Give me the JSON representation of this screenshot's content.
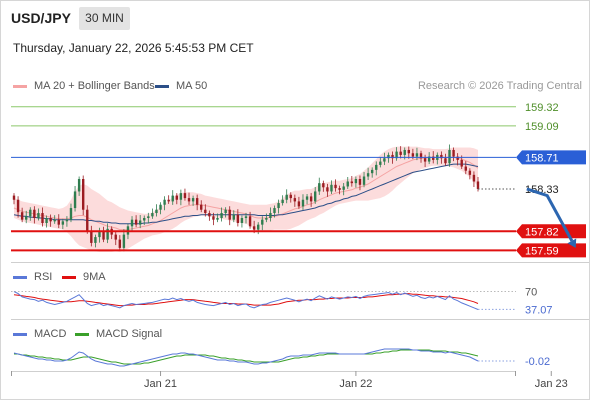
{
  "header": {
    "symbol": "USD/JPY",
    "timeframe": "30 MIN",
    "datetime": "Thursday, January 22, 2026 5:45:53 PM CET",
    "copyright": "Research © 2026 Trading Central"
  },
  "colors": {
    "bollinger": "#f5a3a3",
    "ma50": "#2c4f88",
    "support": "#e01010",
    "resistance": "#2a5fd6",
    "target": "#8cc86a",
    "arrow": "#2c66b0",
    "candle_up": "#2f7d4f",
    "candle_down": "#9c1c22",
    "rsi": "#5a78d8",
    "rsi_ma": "#e01010",
    "macd": "#5a78d8",
    "macd_signal": "#3aa02a"
  },
  "chart_data": [
    {
      "type": "candlestick",
      "title": "",
      "legend": [
        {
          "name": "MA 20 + Bollinger Bands",
          "color": "#f5a3a3"
        },
        {
          "name": "MA 50",
          "color": "#2c4f88"
        }
      ],
      "ylim": [
        157.45,
        159.45
      ],
      "x_ticks": [
        {
          "label": "Jan 21",
          "index": 36
        },
        {
          "label": "Jan 22",
          "index": 84
        },
        {
          "label": "Jan 23",
          "index": 132
        }
      ],
      "levels": [
        {
          "value": 159.32,
          "label": "159.32",
          "kind": "target"
        },
        {
          "value": 159.09,
          "label": "159.09",
          "kind": "target"
        },
        {
          "value": 158.71,
          "label": "158.71",
          "kind": "resistance"
        },
        {
          "value": 158.33,
          "label": "158.33",
          "kind": "last"
        },
        {
          "value": 157.82,
          "label": "157.82",
          "kind": "support"
        },
        {
          "value": 157.59,
          "label": "157.59",
          "kind": "support"
        }
      ],
      "forecast_path": [
        {
          "index": 126,
          "value": 158.33
        },
        {
          "index": 131,
          "value": 158.25
        },
        {
          "index": 138,
          "value": 157.62
        }
      ],
      "close": [
        158.2,
        158.05,
        157.96,
        158.0,
        158.08,
        157.98,
        158.04,
        157.92,
        157.98,
        157.94,
        157.96,
        157.9,
        157.94,
        157.96,
        158.1,
        158.3,
        158.45,
        158.08,
        157.82,
        157.68,
        157.75,
        157.82,
        157.72,
        157.85,
        157.78,
        157.72,
        157.62,
        157.78,
        157.88,
        157.96,
        157.9,
        157.95,
        157.98,
        158.0,
        158.04,
        158.08,
        158.14,
        158.2,
        158.18,
        158.25,
        158.2,
        158.28,
        158.22,
        158.18,
        158.22,
        158.14,
        158.08,
        158.04,
        158.0,
        157.96,
        157.98,
        158.04,
        158.08,
        157.96,
        158.02,
        157.92,
        157.98,
        158.0,
        157.88,
        157.84,
        157.9,
        157.96,
        157.98,
        158.04,
        158.1,
        158.16,
        158.2,
        158.26,
        158.22,
        158.18,
        158.12,
        158.2,
        158.24,
        158.18,
        158.3,
        158.4,
        158.35,
        158.3,
        158.38,
        158.34,
        158.32,
        158.36,
        158.42,
        158.4,
        158.45,
        158.38,
        158.48,
        158.52,
        158.56,
        158.62,
        158.66,
        158.7,
        158.74,
        158.7,
        158.78,
        158.74,
        158.8,
        158.76,
        158.72,
        158.76,
        158.7,
        158.66,
        158.72,
        158.68,
        158.74,
        158.7,
        158.64,
        158.8,
        158.72,
        158.68,
        158.6,
        158.55,
        158.5,
        158.42,
        158.33
      ],
      "ma20_series": [
        158.1,
        158.08,
        158.06,
        158.05,
        158.04,
        158.03,
        158.02,
        158.01,
        158.0,
        157.99,
        157.98,
        157.97,
        157.97,
        157.97,
        157.98,
        158.0,
        158.01,
        158.01,
        157.99,
        157.96,
        157.94,
        157.92,
        157.9,
        157.88,
        157.87,
        157.86,
        157.84,
        157.84,
        157.84,
        157.85,
        157.86,
        157.87,
        157.88,
        157.89,
        157.91,
        157.93,
        157.95,
        157.98,
        158.01,
        158.04,
        158.07,
        158.1,
        158.12,
        158.13,
        158.14,
        158.14,
        158.14,
        158.13,
        158.12,
        158.11,
        158.1,
        158.09,
        158.08,
        158.07,
        158.06,
        158.05,
        158.04,
        158.03,
        158.01,
        157.99,
        157.98,
        157.98,
        157.98,
        157.99,
        158.0,
        158.01,
        158.03,
        158.05,
        158.07,
        158.09,
        158.1,
        158.12,
        158.14,
        158.15,
        158.17,
        158.2,
        158.22,
        158.24,
        158.26,
        158.28,
        158.29,
        158.3,
        158.31,
        158.32,
        158.34,
        158.35,
        158.37,
        158.39,
        158.42,
        158.45,
        158.48,
        158.51,
        158.54,
        158.57,
        158.6,
        158.62,
        158.64,
        158.66,
        158.68,
        158.69,
        158.7,
        158.7,
        158.71,
        158.71,
        158.71,
        158.71,
        158.71,
        158.71,
        158.71,
        158.7,
        158.69,
        158.67,
        158.65,
        158.62,
        158.58
      ],
      "bb_width": [
        0.12,
        0.12,
        0.12,
        0.12,
        0.12,
        0.12,
        0.12,
        0.12,
        0.12,
        0.12,
        0.12,
        0.12,
        0.13,
        0.16,
        0.22,
        0.3,
        0.36,
        0.38,
        0.38,
        0.37,
        0.36,
        0.35,
        0.33,
        0.31,
        0.3,
        0.28,
        0.27,
        0.25,
        0.23,
        0.21,
        0.19,
        0.17,
        0.15,
        0.14,
        0.14,
        0.15,
        0.16,
        0.17,
        0.18,
        0.19,
        0.19,
        0.18,
        0.17,
        0.16,
        0.15,
        0.14,
        0.13,
        0.12,
        0.12,
        0.12,
        0.12,
        0.12,
        0.12,
        0.12,
        0.12,
        0.12,
        0.12,
        0.12,
        0.13,
        0.15,
        0.16,
        0.16,
        0.16,
        0.16,
        0.16,
        0.17,
        0.19,
        0.21,
        0.22,
        0.22,
        0.21,
        0.2,
        0.19,
        0.18,
        0.18,
        0.18,
        0.18,
        0.17,
        0.16,
        0.15,
        0.14,
        0.14,
        0.14,
        0.14,
        0.15,
        0.16,
        0.18,
        0.2,
        0.22,
        0.24,
        0.26,
        0.27,
        0.27,
        0.26,
        0.24,
        0.22,
        0.2,
        0.18,
        0.16,
        0.15,
        0.13,
        0.12,
        0.11,
        0.1,
        0.1,
        0.1,
        0.1,
        0.11,
        0.12,
        0.13,
        0.14,
        0.16,
        0.18,
        0.2,
        0.22
      ],
      "ma50_series": [
        158.02,
        158.01,
        158.0,
        158.0,
        157.99,
        157.99,
        157.98,
        157.98,
        157.97,
        157.97,
        157.96,
        157.96,
        157.96,
        157.96,
        157.96,
        157.96,
        157.96,
        157.96,
        157.95,
        157.95,
        157.94,
        157.94,
        157.93,
        157.93,
        157.92,
        157.92,
        157.91,
        157.91,
        157.91,
        157.91,
        157.91,
        157.91,
        157.92,
        157.92,
        157.93,
        157.93,
        157.94,
        157.95,
        157.96,
        157.97,
        157.98,
        157.99,
        158.0,
        158.0,
        158.01,
        158.01,
        158.02,
        158.02,
        158.02,
        158.02,
        158.02,
        158.02,
        158.02,
        158.02,
        158.02,
        158.02,
        158.02,
        158.02,
        158.02,
        158.02,
        158.01,
        158.01,
        158.01,
        158.01,
        158.01,
        158.02,
        158.02,
        158.03,
        158.04,
        158.05,
        158.06,
        158.07,
        158.08,
        158.09,
        158.1,
        158.12,
        158.13,
        158.15,
        158.16,
        158.18,
        158.19,
        158.21,
        158.22,
        158.24,
        158.25,
        158.27,
        158.29,
        158.31,
        158.33,
        158.35,
        158.37,
        158.39,
        158.41,
        158.43,
        158.45,
        158.47,
        158.49,
        158.51,
        158.53,
        158.54,
        158.55,
        158.56,
        158.57,
        158.58,
        158.59,
        158.6,
        158.61,
        158.62,
        158.63,
        158.63,
        158.63,
        158.63,
        158.62,
        158.61,
        158.6
      ]
    },
    {
      "type": "line",
      "title": "",
      "legend": [
        {
          "name": "RSI",
          "color": "#5a78d8"
        },
        {
          "name": "9MA",
          "color": "#e01010"
        }
      ],
      "ylim": [
        25,
        80
      ],
      "levels": [
        {
          "value": 70,
          "label": "70",
          "kind": "reference"
        },
        {
          "value": 37.07,
          "label": "37.07",
          "kind": "last"
        }
      ],
      "series": [
        {
          "name": "RSI",
          "values": [
            70,
            66,
            60,
            58,
            56,
            55,
            52,
            54,
            50,
            48,
            46,
            48,
            50,
            52,
            56,
            60,
            64,
            56,
            48,
            44,
            46,
            48,
            44,
            46,
            44,
            42,
            40,
            44,
            46,
            48,
            46,
            47,
            48,
            49,
            50,
            52,
            54,
            56,
            55,
            58,
            55,
            57,
            54,
            52,
            54,
            50,
            48,
            46,
            45,
            44,
            46,
            48,
            50,
            46,
            48,
            44,
            46,
            47,
            42,
            40,
            43,
            46,
            47,
            50,
            52,
            54,
            56,
            58,
            56,
            54,
            51,
            54,
            56,
            53,
            58,
            62,
            59,
            56,
            60,
            58,
            56,
            58,
            60,
            59,
            61,
            57,
            61,
            63,
            64,
            65,
            66,
            67,
            68,
            65,
            68,
            64,
            67,
            64,
            61,
            63,
            59,
            57,
            60,
            58,
            61,
            58,
            55,
            62,
            56,
            53,
            49,
            46,
            43,
            40,
            37
          ]
        },
        {
          "name": "9MA",
          "values": [
            64,
            63,
            62,
            61,
            60,
            59,
            57,
            56,
            55,
            54,
            53,
            52,
            51,
            51,
            51,
            52,
            53,
            53,
            52,
            51,
            50,
            49,
            48,
            47,
            46,
            45,
            44,
            44,
            45,
            45,
            46,
            46,
            46,
            47,
            47,
            48,
            49,
            50,
            51,
            52,
            53,
            54,
            55,
            55,
            55,
            54,
            53,
            52,
            51,
            50,
            49,
            48,
            48,
            48,
            48,
            47,
            47,
            47,
            46,
            45,
            45,
            45,
            45,
            45,
            46,
            47,
            49,
            51,
            52,
            53,
            54,
            54,
            55,
            55,
            55,
            56,
            56,
            57,
            57,
            58,
            58,
            58,
            58,
            59,
            59,
            59,
            59,
            60,
            60,
            61,
            62,
            63,
            64,
            64,
            65,
            65,
            66,
            66,
            65,
            65,
            64,
            63,
            62,
            62,
            61,
            61,
            60,
            60,
            59,
            58,
            57,
            55,
            53,
            51,
            48
          ]
        }
      ]
    },
    {
      "type": "line",
      "title": "",
      "legend": [
        {
          "name": "MACD",
          "color": "#5a78d8"
        },
        {
          "name": "MACD Signal",
          "color": "#3aa02a"
        }
      ],
      "ylim": [
        -0.12,
        0.16
      ],
      "levels": [
        {
          "value": -0.02,
          "label": "-0.02",
          "kind": "last"
        }
      ],
      "series": [
        {
          "name": "MACD",
          "values": [
            0.06,
            0.05,
            0.04,
            0.03,
            0.02,
            0.01,
            0.0,
            0.0,
            -0.01,
            -0.01,
            -0.02,
            -0.02,
            -0.02,
            -0.01,
            0.01,
            0.04,
            0.07,
            0.06,
            0.03,
            0.0,
            -0.02,
            -0.03,
            -0.04,
            -0.05,
            -0.05,
            -0.06,
            -0.07,
            -0.07,
            -0.06,
            -0.05,
            -0.04,
            -0.03,
            -0.02,
            -0.01,
            0.0,
            0.01,
            0.02,
            0.03,
            0.04,
            0.05,
            0.05,
            0.06,
            0.06,
            0.05,
            0.05,
            0.04,
            0.03,
            0.02,
            0.01,
            0.0,
            -0.01,
            -0.01,
            -0.01,
            -0.02,
            -0.02,
            -0.03,
            -0.03,
            -0.03,
            -0.04,
            -0.05,
            -0.05,
            -0.04,
            -0.04,
            -0.03,
            -0.02,
            -0.01,
            0.0,
            0.02,
            0.03,
            0.03,
            0.03,
            0.04,
            0.04,
            0.04,
            0.05,
            0.06,
            0.06,
            0.06,
            0.06,
            0.06,
            0.05,
            0.05,
            0.05,
            0.05,
            0.05,
            0.05,
            0.05,
            0.06,
            0.07,
            0.08,
            0.09,
            0.1,
            0.1,
            0.1,
            0.1,
            0.1,
            0.1,
            0.1,
            0.09,
            0.09,
            0.08,
            0.08,
            0.08,
            0.07,
            0.07,
            0.07,
            0.06,
            0.07,
            0.06,
            0.05,
            0.04,
            0.03,
            0.02,
            0.0,
            -0.02
          ]
        },
        {
          "name": "MACD Signal",
          "values": [
            0.05,
            0.05,
            0.04,
            0.04,
            0.03,
            0.03,
            0.02,
            0.02,
            0.01,
            0.01,
            0.0,
            0.0,
            -0.01,
            -0.01,
            -0.01,
            0.0,
            0.01,
            0.02,
            0.02,
            0.02,
            0.01,
            0.0,
            -0.01,
            -0.02,
            -0.03,
            -0.03,
            -0.04,
            -0.05,
            -0.05,
            -0.05,
            -0.05,
            -0.05,
            -0.04,
            -0.04,
            -0.03,
            -0.02,
            -0.01,
            0.0,
            0.01,
            0.02,
            0.03,
            0.03,
            0.04,
            0.04,
            0.04,
            0.04,
            0.04,
            0.04,
            0.03,
            0.03,
            0.02,
            0.01,
            0.01,
            0.0,
            0.0,
            -0.01,
            -0.01,
            -0.02,
            -0.02,
            -0.03,
            -0.03,
            -0.03,
            -0.03,
            -0.03,
            -0.03,
            -0.03,
            -0.02,
            -0.01,
            0.0,
            0.01,
            0.01,
            0.02,
            0.02,
            0.03,
            0.03,
            0.04,
            0.04,
            0.05,
            0.05,
            0.05,
            0.05,
            0.05,
            0.05,
            0.05,
            0.05,
            0.05,
            0.05,
            0.05,
            0.05,
            0.06,
            0.06,
            0.07,
            0.07,
            0.08,
            0.08,
            0.09,
            0.09,
            0.09,
            0.09,
            0.09,
            0.09,
            0.09,
            0.09,
            0.08,
            0.08,
            0.08,
            0.08,
            0.07,
            0.07,
            0.07,
            0.06,
            0.06,
            0.05,
            0.04,
            0.03
          ]
        }
      ]
    }
  ]
}
